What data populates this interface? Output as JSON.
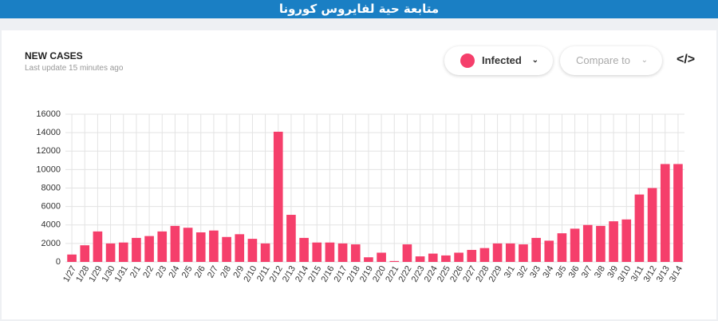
{
  "banner": "متابعة حية لفايروس كورونا",
  "controls": {
    "metric": "Infected",
    "compare": "Compare to",
    "embed": "</>"
  },
  "chart_data": {
    "type": "bar",
    "title": "NEW CASES",
    "subtitle": "Last update 15 minutes ago",
    "categories": [
      "1/27",
      "1/28",
      "1/29",
      "1/30",
      "1/31",
      "2/1",
      "2/2",
      "2/3",
      "2/4",
      "2/5",
      "2/6",
      "2/7",
      "2/8",
      "2/9",
      "2/10",
      "2/11",
      "2/12",
      "2/13",
      "2/14",
      "2/15",
      "2/16",
      "2/17",
      "2/18",
      "2/19",
      "2/20",
      "2/21",
      "2/22",
      "2/23",
      "2/24",
      "2/25",
      "2/26",
      "2/27",
      "2/28",
      "2/29",
      "3/1",
      "3/2",
      "3/3",
      "3/4",
      "3/5",
      "3/6",
      "3/7",
      "3/8",
      "3/9",
      "3/10",
      "3/11",
      "3/12",
      "3/13",
      "3/14"
    ],
    "values": [
      800,
      1800,
      3300,
      2000,
      2100,
      2600,
      2800,
      3300,
      3900,
      3700,
      3200,
      3400,
      2700,
      3000,
      2500,
      2000,
      14100,
      5100,
      2600,
      2100,
      2100,
      2000,
      1900,
      500,
      1000,
      100,
      1900,
      600,
      900,
      700,
      1000,
      1300,
      1500,
      2000,
      2000,
      1900,
      2600,
      2300,
      3100,
      3600,
      4000,
      3900,
      4400,
      4600,
      7300,
      8000,
      10600,
      10600
    ],
    "color": "#f53f6b",
    "ylim": [
      0,
      16000
    ],
    "yticks": [
      0,
      2000,
      4000,
      6000,
      8000,
      10000,
      12000,
      14000,
      16000
    ],
    "grid": true
  }
}
